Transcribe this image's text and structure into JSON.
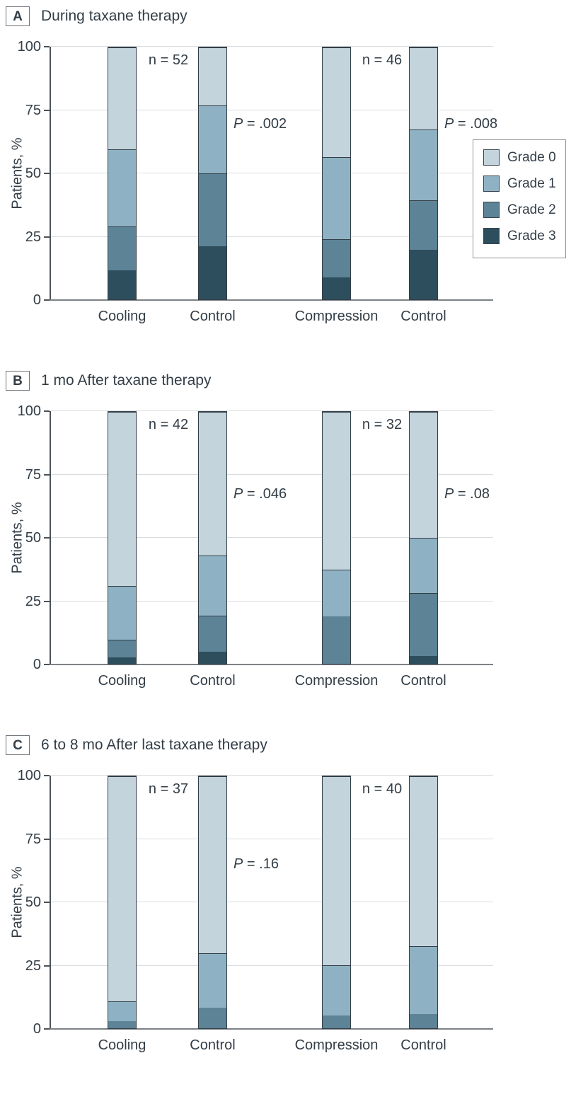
{
  "colors": {
    "Grade 0": "#c3d4dd",
    "Grade 1": "#8eb2c3",
    "Grade 2": "#5c8396",
    "Grade 3": "#2d4e5d",
    "bar_border": "#333e46",
    "gridline": "#d9dcde",
    "baseline": "#7d8286",
    "axis": "#4c5256",
    "text": "#333d46"
  },
  "legend": {
    "entries": [
      "Grade 0",
      "Grade 1",
      "Grade 2",
      "Grade 3"
    ]
  },
  "chart_data": [
    {
      "type": "bar",
      "stacked": true,
      "panel": "A",
      "title": "During taxane therapy",
      "ylabel": "Patients, %",
      "ylim": [
        0,
        100
      ],
      "yticks": [
        0,
        25,
        50,
        75,
        100
      ],
      "ytick_labels": [
        "0",
        "25",
        "50",
        "75",
        "100"
      ],
      "grid": true,
      "legend_visible": true,
      "legend_position": "right",
      "categories": [
        "Cooling",
        "Control",
        "Compression",
        "Control"
      ],
      "series": [
        {
          "name": "Grade 3",
          "values": [
            11.5,
            21.2,
            8.7,
            19.6
          ]
        },
        {
          "name": "Grade 2",
          "values": [
            17.3,
            28.8,
            15.2,
            19.6
          ]
        },
        {
          "name": "Grade 1",
          "values": [
            30.8,
            26.9,
            32.6,
            28.3
          ]
        },
        {
          "name": "Grade 0",
          "values": [
            40.4,
            23.1,
            43.5,
            32.5
          ]
        }
      ],
      "annotations": {
        "pairs": [
          {
            "n": "n = 52",
            "p_italic": "P",
            "p_rest": " = .002"
          },
          {
            "n": "n = 46",
            "p_italic": "P",
            "p_rest": " = .008"
          }
        ]
      }
    },
    {
      "type": "bar",
      "stacked": true,
      "panel": "B",
      "title": "1 mo After taxane therapy",
      "ylabel": "Patients, %",
      "ylim": [
        0,
        100
      ],
      "yticks": [
        0,
        25,
        50,
        75,
        100
      ],
      "ytick_labels": [
        "0",
        "25",
        "50",
        "75",
        "100"
      ],
      "grid": true,
      "legend_visible": false,
      "categories": [
        "Cooling",
        "Control",
        "Compression",
        "Control"
      ],
      "series": [
        {
          "name": "Grade 3",
          "values": [
            2.4,
            4.8,
            0,
            3.1
          ]
        },
        {
          "name": "Grade 2",
          "values": [
            7.1,
            14.3,
            18.8,
            25.0
          ]
        },
        {
          "name": "Grade 1",
          "values": [
            21.4,
            23.8,
            18.7,
            21.9
          ]
        },
        {
          "name": "Grade 0",
          "values": [
            69.1,
            57.1,
            62.5,
            50.0
          ]
        }
      ],
      "annotations": {
        "pairs": [
          {
            "n": "n = 42",
            "p_italic": "P",
            "p_rest": " = .046"
          },
          {
            "n": "n = 32",
            "p_italic": "P",
            "p_rest": " = .08"
          }
        ]
      }
    },
    {
      "type": "bar",
      "stacked": true,
      "panel": "C",
      "title": "6 to 8 mo After last taxane therapy",
      "ylabel": "Patients, %",
      "ylim": [
        0,
        100
      ],
      "yticks": [
        0,
        25,
        50,
        75,
        100
      ],
      "ytick_labels": [
        "0",
        "25",
        "50",
        "75",
        "100"
      ],
      "grid": true,
      "legend_visible": false,
      "categories": [
        "Cooling",
        "Control",
        "Compression",
        "Control"
      ],
      "series": [
        {
          "name": "Grade 3",
          "values": [
            0,
            0,
            0,
            0
          ]
        },
        {
          "name": "Grade 2",
          "values": [
            2.7,
            8.1,
            5.0,
            5.5
          ]
        },
        {
          "name": "Grade 1",
          "values": [
            8.1,
            21.6,
            20.0,
            27.0
          ]
        },
        {
          "name": "Grade 0",
          "values": [
            89.2,
            70.3,
            75.0,
            67.5
          ]
        }
      ],
      "annotations": {
        "pairs": [
          {
            "n": "n = 37",
            "p_italic": "P",
            "p_rest": " = .16"
          },
          {
            "n": "n = 40",
            "p_italic": null,
            "p_rest": null
          }
        ]
      }
    }
  ]
}
